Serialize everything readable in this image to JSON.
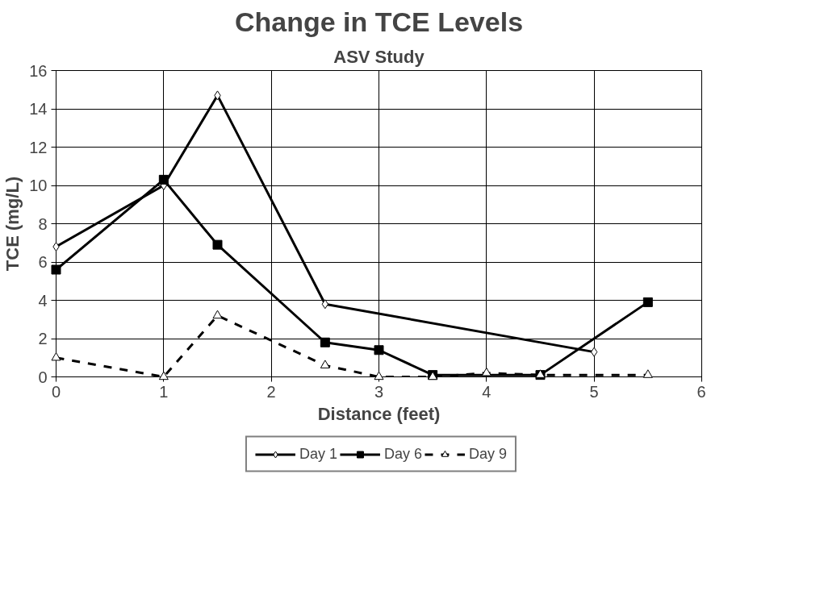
{
  "chart_data": {
    "type": "line",
    "title": "Change in TCE Levels",
    "subtitle": "ASV Study",
    "xlabel": "Distance (feet)",
    "ylabel": "TCE (mg/L)",
    "xlim": [
      0,
      6
    ],
    "xticks": [
      0,
      1,
      2,
      3,
      4,
      5,
      6
    ],
    "ylim": [
      0,
      16
    ],
    "yticks": [
      0,
      2,
      4,
      6,
      8,
      10,
      12,
      14,
      16
    ],
    "grid": true,
    "legend": "bottom",
    "series": [
      {
        "name": "Day 1",
        "color": "#000000",
        "marker": "diamond",
        "line_style": "solid",
        "x": [
          0,
          1,
          1.5,
          2.5,
          5
        ],
        "values": [
          6.8,
          10.0,
          14.7,
          3.8,
          1.3
        ]
      },
      {
        "name": "Day 6",
        "color": "#000000",
        "marker": "square",
        "line_style": "solid",
        "x": [
          0,
          1,
          1.5,
          2.5,
          3,
          3.5,
          4.5,
          5.5
        ],
        "values": [
          5.6,
          10.3,
          6.9,
          1.8,
          1.4,
          0.1,
          0.1,
          3.9
        ]
      },
      {
        "name": "Day 9",
        "color": "#000000",
        "marker": "triangle",
        "line_style": "dashed",
        "x": [
          0,
          1,
          1.5,
          2.5,
          3,
          3.5,
          4,
          4.5,
          5.5
        ],
        "values": [
          1.0,
          0,
          3.2,
          0.6,
          0,
          0,
          0.2,
          0.1,
          0.1
        ]
      }
    ]
  }
}
